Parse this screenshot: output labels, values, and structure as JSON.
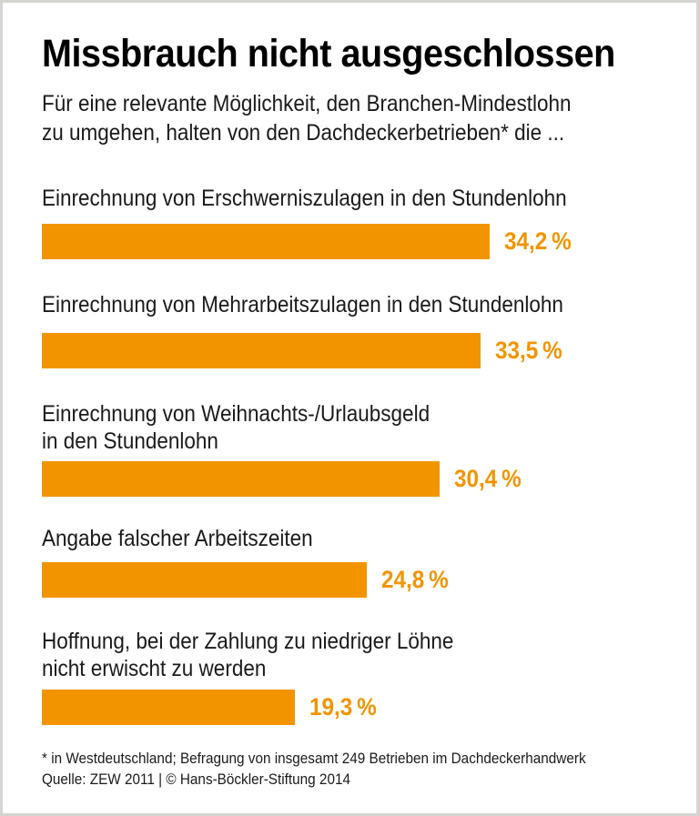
{
  "header": {
    "title": "Missbrauch nicht ausgeschlossen",
    "subtitle_line1": "Für eine relevante Möglichkeit, den Branchen-Mindestlohn",
    "subtitle_line2": "zu umgehen, halten von den Dachdeckerbetrieben* die ..."
  },
  "chart_data": {
    "type": "bar",
    "orientation": "horizontal",
    "unit": "%",
    "bar_color": "#F29400",
    "xlim": [
      0,
      47
    ],
    "grid": false,
    "legend": false,
    "categories": [
      "Einrechnung von Erschwerniszulagen in den Stundenlohn",
      "Einrechnung von Mehrarbeitszulagen in den Stundenlohn",
      "Einrechnung von Weihnachts-/Urlaubsgeld in den Stundenlohn",
      "Angabe falscher Arbeitszeiten",
      "Hoffnung, bei der Zahlung zu niedriger Löhne nicht erwischt zu werden"
    ],
    "values": [
      34.2,
      33.5,
      30.4,
      24.8,
      19.3
    ],
    "items": [
      {
        "label_line1": "Einrechnung von Erschwerniszulagen in den Stundenlohn",
        "label_line2": "",
        "value": 34.2,
        "value_label": "34,2 %"
      },
      {
        "label_line1": "Einrechnung von Mehrarbeitszulagen in den Stundenlohn",
        "label_line2": "",
        "value": 33.5,
        "value_label": "33,5 %"
      },
      {
        "label_line1": "Einrechnung von Weihnachts-/Urlaubsgeld",
        "label_line2": "in den Stundenlohn",
        "value": 30.4,
        "value_label": "30,4 %"
      },
      {
        "label_line1": "Angabe falscher Arbeitszeiten",
        "label_line2": "",
        "value": 24.8,
        "value_label": "24,8 %"
      },
      {
        "label_line1": "Hoffnung, bei der Zahlung zu niedriger Löhne",
        "label_line2": "nicht erwischt zu werden",
        "value": 19.3,
        "value_label": "19,3 %"
      }
    ]
  },
  "footer": {
    "footnote": "* in Westdeutschland; Befragung von insgesamt 249 Betrieben im Dachdeckerhandwerk",
    "source": "Quelle: ZEW 2011 | © Hans-Böckler-Stiftung 2014"
  }
}
